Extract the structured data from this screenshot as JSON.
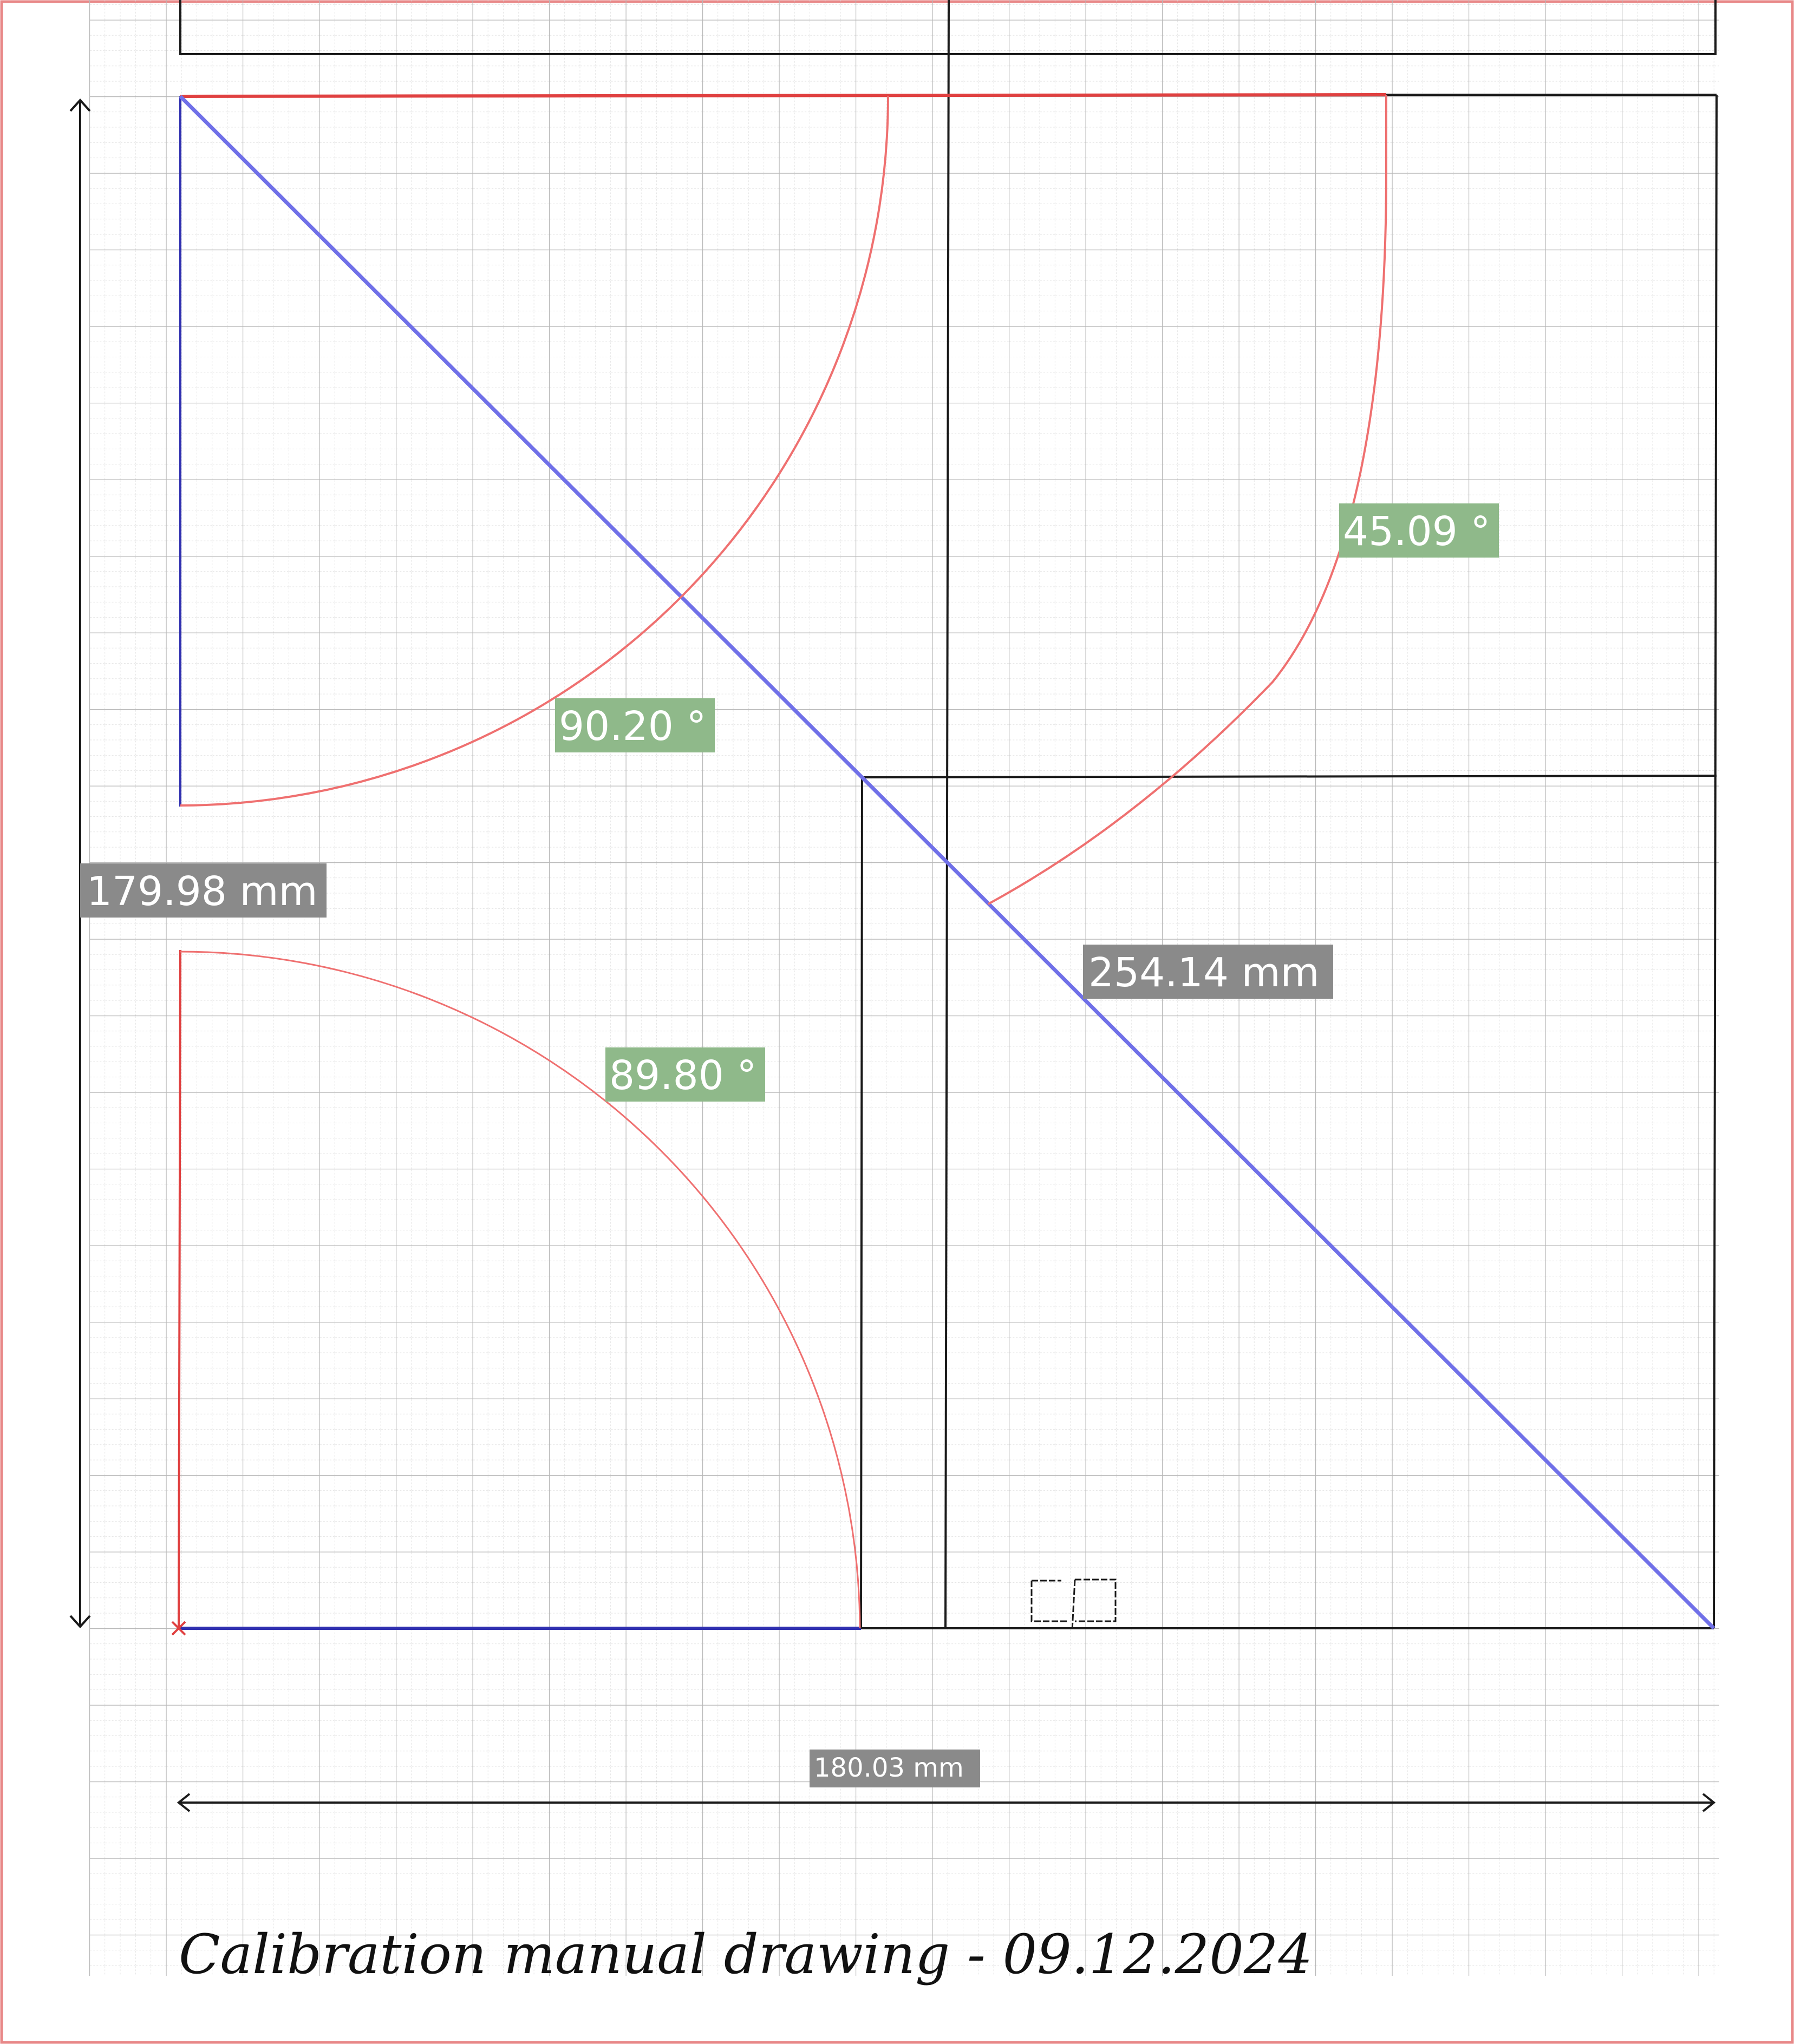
{
  "colors": {
    "paper": "#ffffff",
    "grid_minor": "#d8d8d8",
    "grid_major": "#b4b4b4",
    "ink_black": "#1a1a1a",
    "ink_red": "#e04040",
    "arc_red": "#ef7070",
    "diag_blue": "#7070e8",
    "edge_blue": "#3030b0",
    "angle_label_bg": "#8fb98a",
    "length_label_bg": "#8a8a8a",
    "border_red": "#e88888"
  },
  "measurements": {
    "height_label": "179.98 mm",
    "width_label": "180.03 mm",
    "diagonal_label": "254.14 mm",
    "angle_top_left": "90.20 °",
    "angle_bottom_left": "89.80 °",
    "angle_right": "45.09 °"
  },
  "caption": "Calibration manual drawing - 09.12.2024",
  "icons": {
    "origin_marker": "x-mark-icon",
    "dimension_arrows": "double-arrow-icon"
  }
}
